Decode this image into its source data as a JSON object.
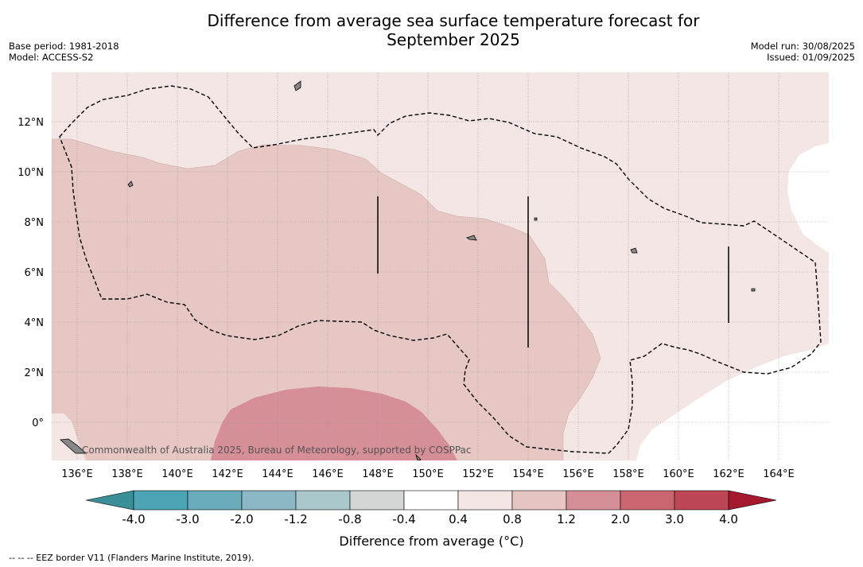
{
  "title_line1": "Difference from average sea surface temperature forecast for",
  "title_line2": "September 2025",
  "meta_left": [
    "Base period: 1981-2018",
    "Model: ACCESS-S2"
  ],
  "meta_right": [
    "Model run: 30/08/2025",
    "Issued: 01/09/2025"
  ],
  "credit": "Commonwealth of Australia 2025, Bureau of Meteorology, supported by COSPPac",
  "x_ticks": [
    "136°E",
    "138°E",
    "140°E",
    "142°E",
    "144°E",
    "146°E",
    "148°E",
    "150°E",
    "152°E",
    "154°E",
    "156°E",
    "158°E",
    "160°E",
    "162°E",
    "164°E"
  ],
  "y_ticks": [
    "12°N",
    "10°N",
    "8°N",
    "6°N",
    "4°N",
    "2°N",
    "0°"
  ],
  "colorbar": {
    "label": "Difference from average (°C)",
    "ticks": [
      "-4.0",
      "-3.0",
      "-2.0",
      "-1.2",
      "-0.8",
      "-0.4",
      "0.4",
      "0.8",
      "1.2",
      "2.0",
      "3.0",
      "4.0"
    ],
    "colors": [
      "#3b8f99",
      "#4ba5b5",
      "#6aacbc",
      "#8bb8c4",
      "#aac8cc",
      "#d4d6d6",
      "#ffffff",
      "#f5e6e6",
      "#e6c5c2",
      "#d68f96",
      "#c96670",
      "#bd4755",
      "#a5182e"
    ]
  },
  "footer": "--  --  -- EEZ border V11 (Flanders Marine Institute, 2019).",
  "map_layers": {
    "ocean_color": "#f3e6e5",
    "anomaly_0_8_1_2_color": "#e6c7c3",
    "anomaly_1_2_2_0_color": "#d68e97",
    "land_color": "#888888"
  }
}
